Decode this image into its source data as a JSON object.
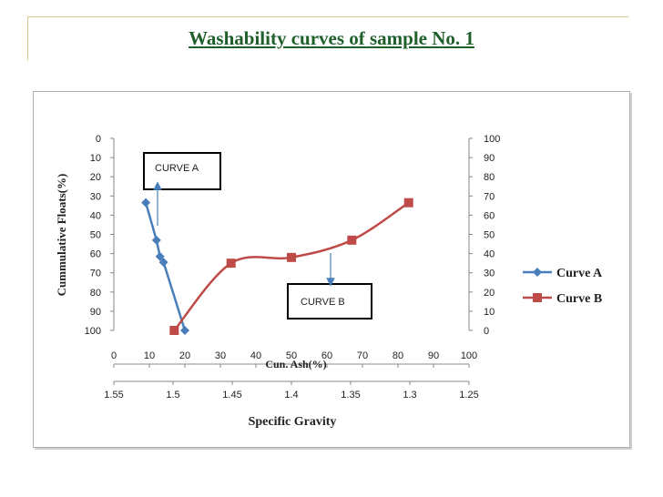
{
  "slide": {
    "title": "Washability curves of sample No. 1"
  },
  "chart_data": {
    "type": "line",
    "left_axis": {
      "label": "Cummulative Floats(%)",
      "ticks": [
        0,
        10,
        20,
        30,
        40,
        50,
        60,
        70,
        80,
        90,
        100
      ],
      "reversed": true,
      "range": [
        0,
        100
      ]
    },
    "right_axis": {
      "ticks": [
        100,
        90,
        80,
        70,
        60,
        50,
        40,
        30,
        20,
        10,
        0
      ],
      "range": [
        0,
        100
      ]
    },
    "x_axis_ash": {
      "label": "Cun. Ash(%)",
      "ticks": [
        0,
        10,
        20,
        30,
        40,
        50,
        60,
        70,
        80,
        90,
        100
      ],
      "range": [
        0,
        100
      ]
    },
    "x_axis_sg": {
      "label": "Specific Gravity",
      "ticks": [
        "1.55",
        "1.5",
        "1.45",
        "1.4",
        "1.35",
        "1.3",
        "1.25"
      ],
      "range": [
        1.55,
        1.25
      ]
    },
    "series": [
      {
        "name": "Curve A",
        "color": "#4a7ebb",
        "marker": "diamond",
        "axis": "left",
        "x": [
          9,
          12,
          13,
          14,
          20
        ],
        "y": [
          33.5,
          53,
          61.5,
          64.5,
          100
        ]
      },
      {
        "name": "Curve B",
        "color": "#be4b48",
        "marker": "square",
        "axis": "right",
        "x": [
          17,
          33,
          50,
          67,
          83
        ],
        "y": [
          0,
          35,
          38,
          47,
          66.5
        ]
      }
    ],
    "annotations": [
      {
        "label": "CURVE A"
      },
      {
        "label": "CURVE B"
      }
    ],
    "legend": {
      "position": "right"
    }
  }
}
